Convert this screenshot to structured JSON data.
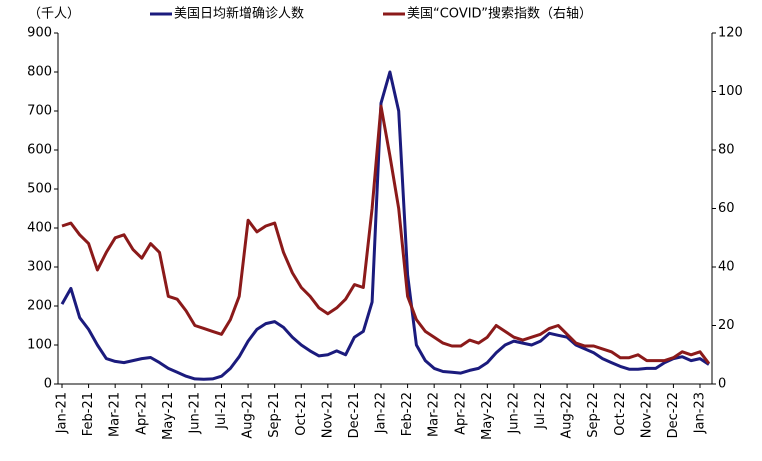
{
  "chart_data": {
    "type": "line",
    "unit_label": "（千人）",
    "categories": [
      "Jan-21",
      null,
      null,
      "Feb-21",
      null,
      null,
      "Mar-21",
      null,
      null,
      "Apr-21",
      null,
      null,
      "May-21",
      null,
      null,
      "Jun-21",
      null,
      null,
      "Jul-21",
      null,
      null,
      "Aug-21",
      null,
      null,
      "Sep-21",
      null,
      null,
      "Oct-21",
      null,
      null,
      "Nov-21",
      null,
      null,
      "Dec-21",
      null,
      null,
      "Jan-22",
      null,
      null,
      "Feb-22",
      null,
      null,
      "Mar-22",
      null,
      null,
      "Apr-22",
      null,
      null,
      "May-22",
      null,
      null,
      "Jun-22",
      null,
      null,
      "Jul-22",
      null,
      null,
      "Aug-22",
      null,
      null,
      "Sep-22",
      null,
      null,
      "Oct-22",
      null,
      null,
      "Nov-22",
      null,
      null,
      "Dec-22",
      null,
      null,
      "Jan-23",
      null
    ],
    "series": [
      {
        "name": "美国日均新增确诊人数",
        "color": "#1b1b7d",
        "values": [
          205,
          245,
          170,
          140,
          100,
          65,
          58,
          55,
          60,
          65,
          68,
          55,
          40,
          30,
          20,
          13,
          12,
          13,
          20,
          40,
          70,
          110,
          140,
          155,
          160,
          145,
          120,
          100,
          85,
          72,
          75,
          85,
          75,
          120,
          135,
          210,
          720,
          800,
          700,
          280,
          100,
          60,
          40,
          32,
          30,
          28,
          35,
          40,
          55,
          80,
          100,
          110,
          105,
          100,
          110,
          130,
          125,
          120,
          100,
          90,
          80,
          65,
          55,
          45,
          38,
          38,
          40,
          40,
          55,
          65,
          70,
          60,
          65,
          50
        ]
      },
      {
        "name": "美国“COVID”搜索指数（右轴）",
        "color": "#8b1a1a",
        "axis": "y2",
        "values": [
          54,
          55,
          51,
          48,
          39,
          45,
          50,
          51,
          46,
          43,
          48,
          45,
          30,
          29,
          25,
          20,
          19,
          18,
          17,
          22,
          30,
          56,
          52,
          54,
          55,
          45,
          38,
          33,
          30,
          26,
          24,
          26,
          29,
          34,
          33,
          60,
          95,
          78,
          60,
          30,
          22,
          18,
          16,
          14,
          13,
          13,
          15,
          14,
          16,
          20,
          18,
          16,
          15,
          16,
          17,
          19,
          20,
          17,
          14,
          13,
          13,
          12,
          11,
          9,
          9,
          10,
          8,
          8,
          8,
          9,
          11,
          10,
          11,
          7
        ]
      }
    ],
    "ylim": [
      0,
      900
    ],
    "yticks": [
      0,
      100,
      200,
      300,
      400,
      500,
      600,
      700,
      800,
      900
    ],
    "y2lim": [
      0,
      120
    ],
    "y2ticks": [
      0,
      20,
      40,
      60,
      80,
      100,
      120
    ],
    "grid": false
  }
}
